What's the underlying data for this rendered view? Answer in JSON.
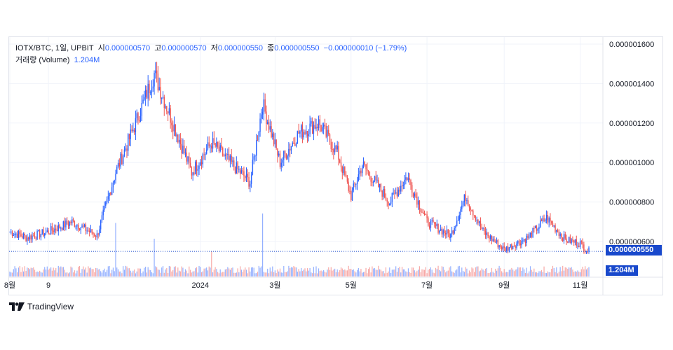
{
  "legend": {
    "symbol": "IOTX/BTC, 1일, UPBIT",
    "open_label": "시",
    "open_value": "0.000000570",
    "high_label": "고",
    "high_value": "0.000000570",
    "low_label": "저",
    "low_value": "0.000000550",
    "close_label": "종",
    "close_value": "0.000000550",
    "change": "−0.000000010 (−1.79%)",
    "volume_label": "거래량 (Volume)",
    "volume_value": "1.204M"
  },
  "tags": {
    "last_price": "0.000000550",
    "volume": "1.204M"
  },
  "branding": "TradingView",
  "colors": {
    "up": "#2962ff",
    "down": "#ef5350",
    "price_line": "#1848cc",
    "grid": "#f0f3fa"
  },
  "chart_data": {
    "type": "candlestick",
    "price_ticks": [
      "0.000001600",
      "0.000001400",
      "0.000001200",
      "0.000001000",
      "0.000000800",
      "0.000000600"
    ],
    "ylim": [
      5.2e-07,
      1.63e-06
    ],
    "x_ticks": [
      "8월",
      "9",
      "2024",
      "3월",
      "5월",
      "7월",
      "9월",
      "11월"
    ],
    "grid": true,
    "price_series_approx": [
      [
        "2023-08-01",
        6.5e-07
      ],
      [
        "2023-08-15",
        6.2e-07
      ],
      [
        "2023-09-01",
        6.5e-07
      ],
      [
        "2023-09-20",
        7e-07
      ],
      [
        "2023-10-10",
        6.3e-07
      ],
      [
        "2023-10-25",
        9.5e-07
      ],
      [
        "2023-11-10",
        1.2e-06
      ],
      [
        "2023-11-25",
        1.45e-06
      ],
      [
        "2023-12-10",
        1.2e-06
      ],
      [
        "2023-12-25",
        9.5e-07
      ],
      [
        "2024-01-10",
        1.1e-06
      ],
      [
        "2024-01-25",
        1e-06
      ],
      [
        "2024-02-10",
        9e-07
      ],
      [
        "2024-02-20",
        1.3e-06
      ],
      [
        "2024-03-05",
        1e-06
      ],
      [
        "2024-03-20",
        1.15e-06
      ],
      [
        "2024-04-05",
        1.2e-06
      ],
      [
        "2024-04-20",
        1.05e-06
      ],
      [
        "2024-05-01",
        8.3e-07
      ],
      [
        "2024-05-10",
        9.9e-07
      ],
      [
        "2024-06-01",
        8e-07
      ],
      [
        "2024-06-15",
        9.3e-07
      ],
      [
        "2024-07-01",
        7e-07
      ],
      [
        "2024-07-20",
        6.3e-07
      ],
      [
        "2024-08-01",
        8.3e-07
      ],
      [
        "2024-08-15",
        6.5e-07
      ],
      [
        "2024-09-01",
        5.6e-07
      ],
      [
        "2024-09-20",
        6.2e-07
      ],
      [
        "2024-10-05",
        7.2e-07
      ],
      [
        "2024-10-20",
        6.1e-07
      ],
      [
        "2024-11-01",
        5.9e-07
      ],
      [
        "2024-11-08",
        5.5e-07
      ]
    ],
    "volume_spikes_approx": [
      [
        "2023-10-25",
        0.85
      ],
      [
        "2023-11-25",
        0.6
      ],
      [
        "2024-01-10",
        0.4
      ],
      [
        "2024-02-20",
        1.0
      ]
    ]
  }
}
